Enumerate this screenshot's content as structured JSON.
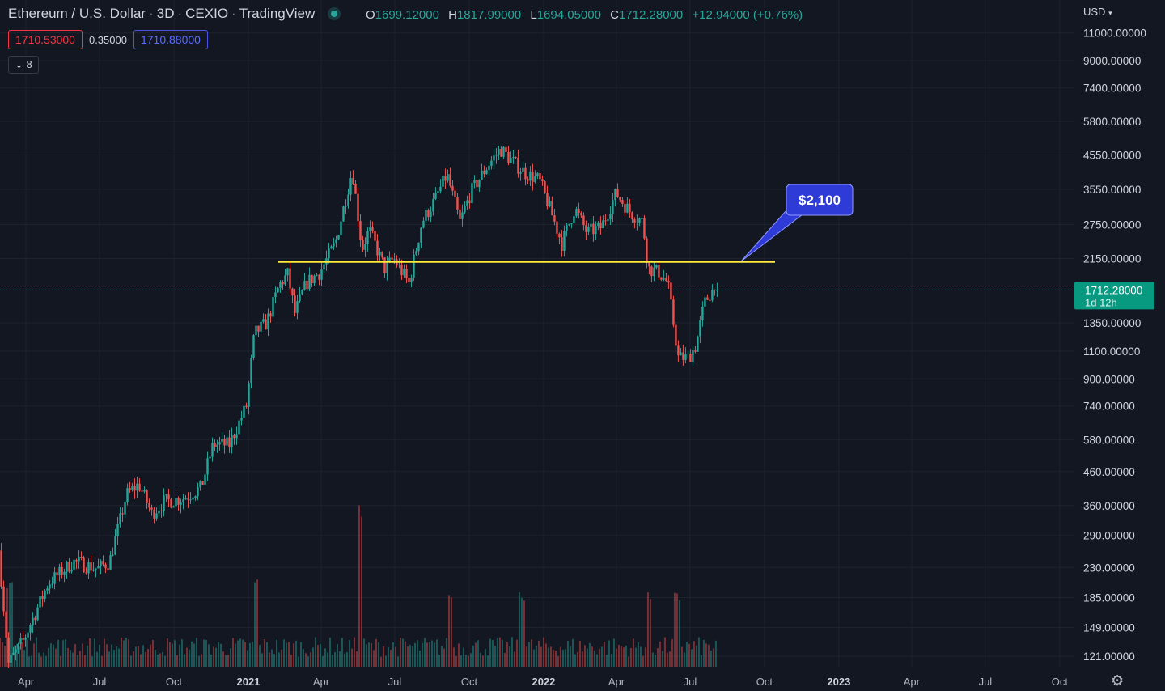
{
  "header": {
    "symbol": "Ethereum / U.S. Dollar",
    "interval": "3D",
    "exchange": "CEXIO",
    "source": "TradingView",
    "ohlc": {
      "o_label": "O",
      "o": "1699.12000",
      "h_label": "H",
      "h": "1817.99000",
      "l_label": "L",
      "l": "1694.05000",
      "c_label": "C",
      "c": "1712.28000",
      "change": "+12.94000 (+0.76%)"
    },
    "bid": "1710.53000",
    "spread": "0.35000",
    "ask": "1710.88000",
    "indicators_collapse": "8",
    "currency": "USD"
  },
  "colors": {
    "background": "#131722",
    "up": "#26a69a",
    "down": "#ef5350",
    "grid": "#1e222d",
    "support_line": "#ffeb3b",
    "callout": "#2f3bd6",
    "price_label": "#089981"
  },
  "chart_data": {
    "type": "candlestick",
    "y_scale": "log",
    "ylim": [
      107,
      14000
    ],
    "y_ticks": [
      121,
      149,
      185,
      230,
      290,
      360,
      460,
      580,
      740,
      900,
      1100,
      1350,
      1712.28,
      2150,
      2750,
      3550,
      4550,
      5800,
      7400,
      9000,
      11000
    ],
    "y_tick_labels": [
      "121.00000",
      "149.00000",
      "185.00000",
      "230.00000",
      "290.00000",
      "360.00000",
      "460.00000",
      "580.00000",
      "740.00000",
      "900.00000",
      "1100.00000",
      "1350.00000",
      "",
      "2150.00000",
      "2750.00000",
      "3550.00000",
      "4550.00000",
      "5800.00000",
      "7400.00000",
      "9000.00000",
      "11000.00000"
    ],
    "x_ticks": [
      "Apr",
      "Jul",
      "Oct",
      "2021",
      "Apr",
      "Jul",
      "Oct",
      "2022",
      "Apr",
      "Jul",
      "Oct",
      "2023",
      "Apr",
      "Jul",
      "Oct"
    ],
    "last_price": {
      "value": 1712.28,
      "label": "1712.28000",
      "countdown": "1d 12h"
    },
    "support_level": 2100,
    "annotation": "$2,100",
    "price_path": [
      [
        "2020-02-29",
        260
      ],
      [
        "2020-03-12",
        115
      ],
      [
        "2020-03-30",
        135
      ],
      [
        "2020-04-30",
        205
      ],
      [
        "2020-05-31",
        240
      ],
      [
        "2020-06-30",
        228
      ],
      [
        "2020-07-15",
        240
      ],
      [
        "2020-08-05",
        390
      ],
      [
        "2020-08-20",
        420
      ],
      [
        "2020-09-05",
        340
      ],
      [
        "2020-09-20",
        370
      ],
      [
        "2020-10-15",
        380
      ],
      [
        "2020-11-05",
        410
      ],
      [
        "2020-11-20",
        560
      ],
      [
        "2020-12-10",
        560
      ],
      [
        "2020-12-31",
        740
      ],
      [
        "2021-01-10",
        1250
      ],
      [
        "2021-01-25",
        1350
      ],
      [
        "2021-02-10",
        1780
      ],
      [
        "2021-02-20",
        1920
      ],
      [
        "2021-03-01",
        1450
      ],
      [
        "2021-03-15",
        1800
      ],
      [
        "2021-04-01",
        1950
      ],
      [
        "2021-04-20",
        2400
      ],
      [
        "2021-05-05",
        3500
      ],
      [
        "2021-05-11",
        4100
      ],
      [
        "2021-05-23",
        2300
      ],
      [
        "2021-06-01",
        2650
      ],
      [
        "2021-06-20",
        2000
      ],
      [
        "2021-07-01",
        2150
      ],
      [
        "2021-07-20",
        1800
      ],
      [
        "2021-08-05",
        2800
      ],
      [
        "2021-08-20",
        3250
      ],
      [
        "2021-09-05",
        3950
      ],
      [
        "2021-09-21",
        2800
      ],
      [
        "2021-10-05",
        3500
      ],
      [
        "2021-10-25",
        4200
      ],
      [
        "2021-11-10",
        4750
      ],
      [
        "2021-11-25",
        4350
      ],
      [
        "2021-12-10",
        4000
      ],
      [
        "2021-12-28",
        3800
      ],
      [
        "2022-01-10",
        3100
      ],
      [
        "2022-01-25",
        2400
      ],
      [
        "2022-02-10",
        3100
      ],
      [
        "2022-02-25",
        2600
      ],
      [
        "2022-03-15",
        2700
      ],
      [
        "2022-04-02",
        3450
      ],
      [
        "2022-04-20",
        3000
      ],
      [
        "2022-05-05",
        2800
      ],
      [
        "2022-05-12",
        2000
      ],
      [
        "2022-05-25",
        1950
      ],
      [
        "2022-06-05",
        1800
      ],
      [
        "2022-06-18",
        1050
      ],
      [
        "2022-07-01",
        1050
      ],
      [
        "2022-07-10",
        1150
      ],
      [
        "2022-07-20",
        1550
      ],
      [
        "2022-07-29",
        1700
      ],
      [
        "2022-08-02",
        1712.28
      ]
    ],
    "volume_spikes": [
      [
        "2020-03-12",
        0.55
      ],
      [
        "2021-01-10",
        0.55
      ],
      [
        "2021-05-20",
        1.0
      ],
      [
        "2021-09-07",
        0.45
      ],
      [
        "2021-12-05",
        0.45
      ],
      [
        "2022-05-12",
        0.45
      ],
      [
        "2022-06-15",
        0.45
      ]
    ]
  }
}
